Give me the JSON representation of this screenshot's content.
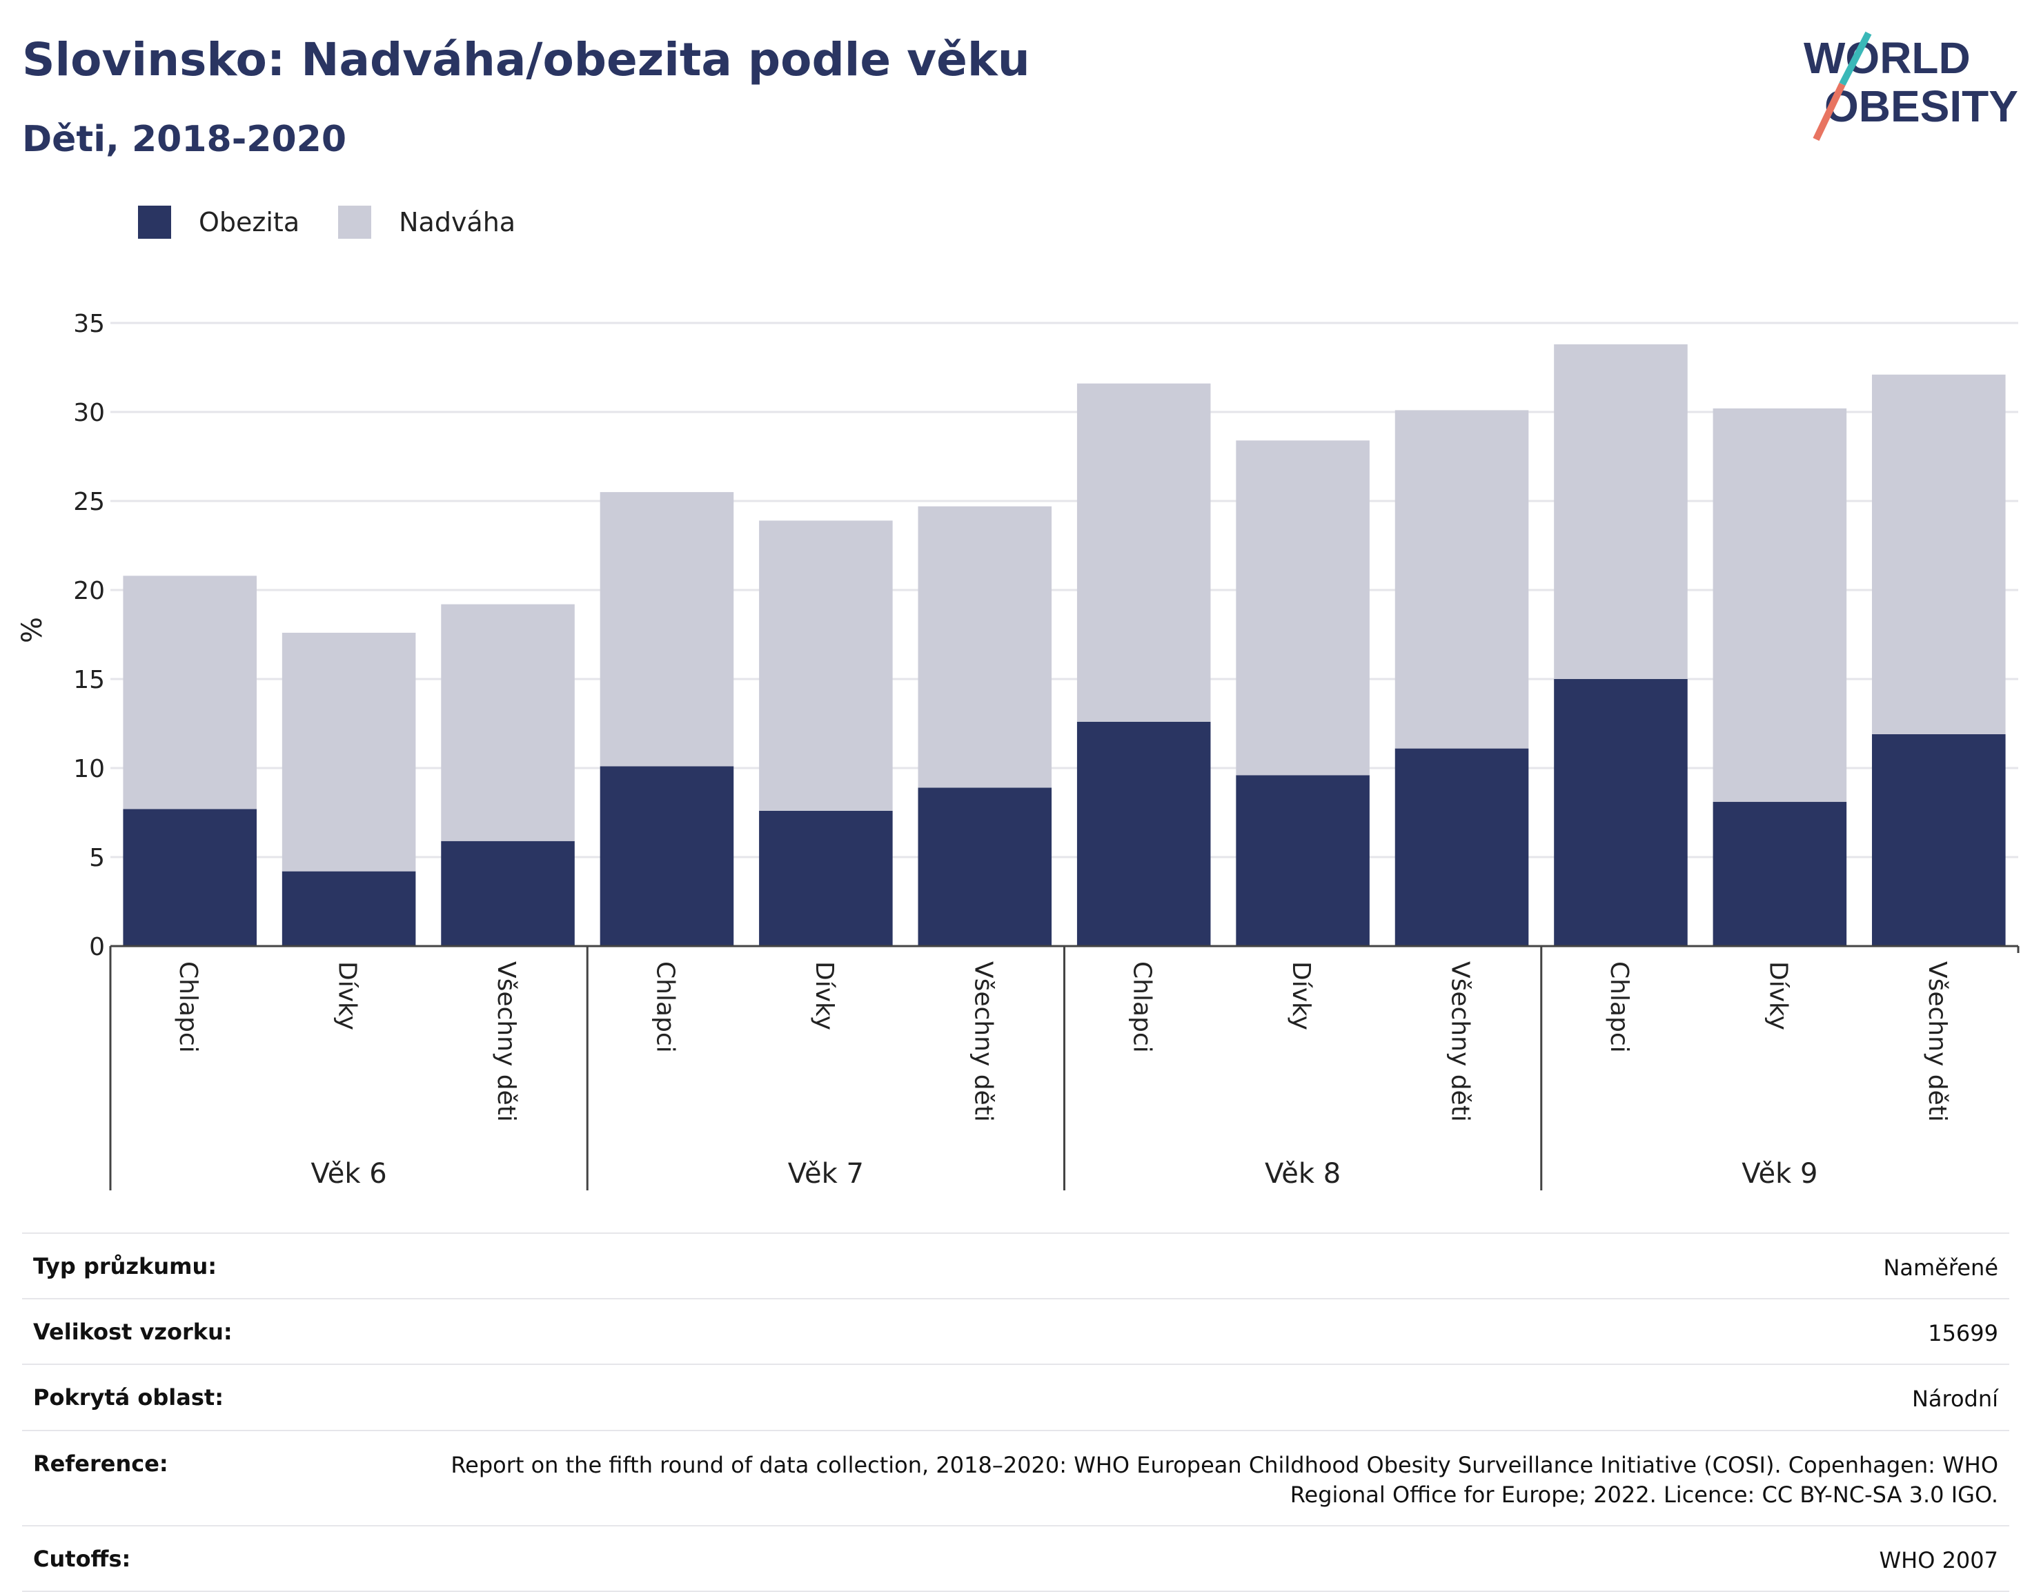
{
  "header": {
    "title": "Slovinsko: Nadváha/obezita podle věku",
    "subtitle": "Děti, 2018-2020"
  },
  "logo": {
    "line1": "WORLD",
    "line2": "OBESITY"
  },
  "colors": {
    "obesity": "#2a3562",
    "overweight": "#cbccd8",
    "grid": "#e5e5ea",
    "axis": "#444444"
  },
  "chart_data": {
    "type": "bar",
    "stacked": true,
    "ylabel": "%",
    "ylim": [
      0,
      35
    ],
    "yticks": [
      0,
      5,
      10,
      15,
      20,
      25,
      30,
      35
    ],
    "grid": true,
    "legend_position": "top-left",
    "groups": [
      {
        "label": "Věk 6",
        "categories": [
          "Chlapci",
          "Dívky",
          "Všechny děti"
        ]
      },
      {
        "label": "Věk 7",
        "categories": [
          "Chlapci",
          "Dívky",
          "Všechny děti"
        ]
      },
      {
        "label": "Věk 8",
        "categories": [
          "Chlapci",
          "Dívky",
          "Všechny děti"
        ]
      },
      {
        "label": "Věk 9",
        "categories": [
          "Chlapci",
          "Dívky",
          "Všechny děti"
        ]
      }
    ],
    "series": [
      {
        "name": "Obezita",
        "values": [
          7.7,
          4.2,
          5.9,
          10.1,
          7.6,
          8.9,
          12.6,
          9.6,
          11.1,
          15.0,
          8.1,
          11.9
        ]
      },
      {
        "name": "Nadváha",
        "values": [
          13.1,
          13.4,
          13.3,
          15.4,
          16.3,
          15.8,
          19.0,
          18.8,
          19.0,
          18.8,
          22.1,
          20.2
        ]
      }
    ]
  },
  "info": [
    {
      "label": "Typ průzkumu:",
      "value": "Naměřené"
    },
    {
      "label": "Velikost vzorku:",
      "value": "15699"
    },
    {
      "label": "Pokrytá oblast:",
      "value": "Národní"
    },
    {
      "label": "Reference:",
      "value": "Report on the fifth round of data collection, 2018–2020: WHO European Childhood Obesity Surveillance Initiative (COSI). Copenhagen: WHO Regional Office for Europe; 2022. Licence: CC BY-NC-SA 3.0 IGO."
    },
    {
      "label": "Cutoffs:",
      "value": "WHO 2007"
    }
  ]
}
